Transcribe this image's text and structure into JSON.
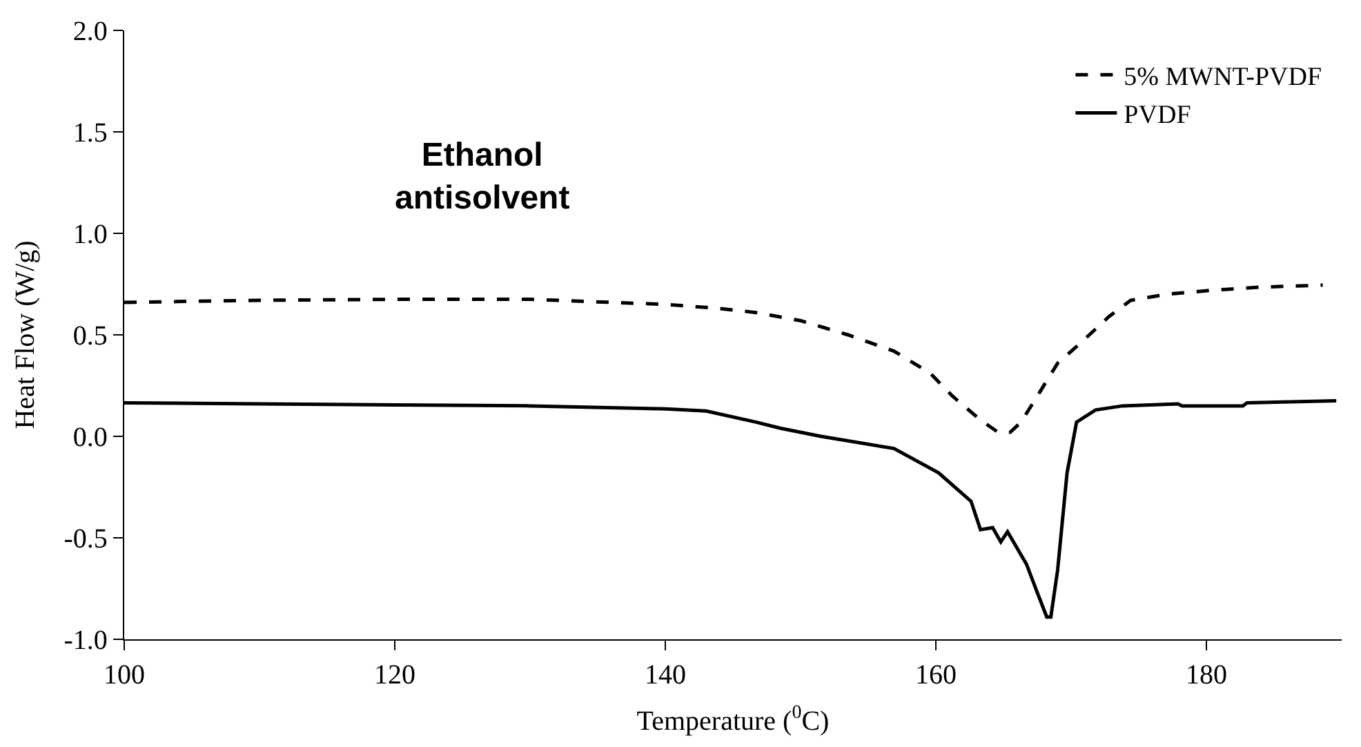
{
  "chart_data": {
    "type": "line",
    "xlabel": "Temperature ($^{0}$C)",
    "ylabel": "Heat Flow (W/g)",
    "annotations": [
      "Ethanol\nantisolvent"
    ],
    "xlim": [
      100,
      190
    ],
    "xticks": [
      100,
      120,
      140,
      160,
      180
    ],
    "ylim": [
      -1.0,
      2.0
    ],
    "yticks": [
      {
        "value": -1.0,
        "label": "-1.0"
      },
      {
        "value": -0.5,
        "label": "-0.5"
      },
      {
        "value": 0,
        "label": "0.0"
      },
      {
        "value": 0.5,
        "label": "0.5"
      },
      {
        "value": 1.0,
        "label": "1.0"
      },
      {
        "value": 1.5,
        "label": "1.5"
      },
      {
        "value": 2.0,
        "label": "2.0"
      }
    ],
    "legend": "top right",
    "marker": "none",
    "series": [
      {
        "name": "5% MWNT-PVDF",
        "color": "#000000",
        "line_style": "dashed",
        "x": [
          100,
          110,
          120,
          130,
          140,
          144,
          146.7,
          150,
          153.5,
          156.9,
          159.6,
          161.2,
          163.3,
          164.6,
          165.5,
          166.3,
          167.7,
          169.0,
          170.7,
          172.8,
          174.4,
          177.1,
          180.5,
          184,
          188.6
        ],
        "values": [
          0.66,
          0.67,
          0.675,
          0.675,
          0.65,
          0.63,
          0.61,
          0.57,
          0.5,
          0.42,
          0.31,
          0.2,
          0.08,
          0.02,
          0.02,
          0.07,
          0.22,
          0.36,
          0.46,
          0.59,
          0.67,
          0.7,
          0.72,
          0.735,
          0.745
        ]
      },
      {
        "name": "PVDF",
        "color": "#000000",
        "line_style": "solid",
        "x": [
          100,
          110,
          120,
          130,
          140,
          143,
          146.7,
          148.5,
          151.5,
          156.9,
          160.2,
          162.6,
          163.3,
          164.2,
          164.8,
          165.3,
          166.7,
          167.5,
          168.2,
          168.5,
          169.0,
          169.7,
          170.4,
          171.8,
          173.8,
          177.9,
          178.2,
          182.7,
          183,
          189.6
        ],
        "values": [
          0.165,
          0.16,
          0.155,
          0.15,
          0.135,
          0.125,
          0.07,
          0.04,
          0.0,
          -0.06,
          -0.18,
          -0.32,
          -0.46,
          -0.45,
          -0.52,
          -0.47,
          -0.63,
          -0.77,
          -0.89,
          -0.89,
          -0.66,
          -0.18,
          0.07,
          0.13,
          0.15,
          0.16,
          0.15,
          0.15,
          0.165,
          0.175
        ]
      }
    ]
  }
}
